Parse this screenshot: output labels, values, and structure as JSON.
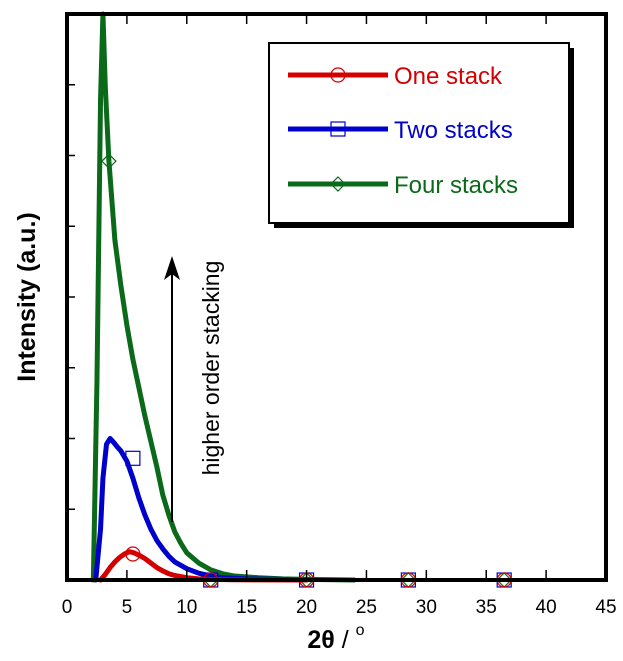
{
  "chart_data": {
    "type": "line",
    "title": "",
    "xlabel_main": "2θ",
    "xlabel_sep": " / ",
    "xlabel_unit": "o",
    "ylabel": "Intensity (a.u.)",
    "xlim": [
      0,
      45
    ],
    "ylim": [
      0,
      1
    ],
    "x_ticks": [
      0,
      5,
      10,
      15,
      20,
      25,
      30,
      35,
      40,
      45
    ],
    "y_ticks_count": 8,
    "y_tick_labels_shown": false,
    "grid": false,
    "legend_position": "top-right",
    "annotation": "higher order stacking",
    "series": [
      {
        "name": "One stack",
        "color": "#d40000",
        "marker": "circle",
        "x": [
          2.8,
          3.2,
          3.6,
          4.0,
          4.4,
          4.8,
          5.2,
          5.6,
          6.0,
          6.5,
          7.0,
          7.5,
          8.0,
          8.5,
          9.0,
          10,
          11,
          12,
          14,
          16,
          20
        ],
        "y": [
          0.0,
          0.01,
          0.022,
          0.032,
          0.04,
          0.046,
          0.05,
          0.048,
          0.044,
          0.038,
          0.03,
          0.022,
          0.016,
          0.011,
          0.008,
          0.004,
          0.002,
          0.001,
          0.0005,
          0.0002,
          0.0
        ],
        "marker_x": [
          5.5,
          12,
          20,
          28.5,
          36.5
        ],
        "marker_y": [
          0.046,
          0.0,
          0.0,
          0.0,
          0.0
        ]
      },
      {
        "name": "Two stacks",
        "color": "#0000cc",
        "marker": "square",
        "x": [
          2.4,
          2.8,
          3.0,
          3.3,
          3.6,
          3.9,
          4.2,
          4.5,
          5.0,
          5.5,
          6.0,
          6.5,
          7.0,
          7.5,
          8.0,
          8.5,
          9.0,
          10,
          11,
          12,
          13,
          15,
          18,
          20
        ],
        "y": [
          0.0,
          0.09,
          0.18,
          0.24,
          0.25,
          0.243,
          0.235,
          0.228,
          0.21,
          0.18,
          0.145,
          0.115,
          0.09,
          0.07,
          0.055,
          0.042,
          0.032,
          0.02,
          0.012,
          0.007,
          0.004,
          0.002,
          0.001,
          0.0
        ],
        "marker_x": [
          5.5,
          12,
          20,
          28.5,
          36.5
        ],
        "marker_y": [
          0.215,
          0.0,
          0.0,
          0.0,
          0.0
        ]
      },
      {
        "name": "Four stacks",
        "color": "#0a6a1a",
        "marker": "diamond",
        "x": [
          2.2,
          2.5,
          2.8,
          3.0,
          3.2,
          3.5,
          4.0,
          4.5,
          5.0,
          5.5,
          6.0,
          6.5,
          7.0,
          7.5,
          8.0,
          8.5,
          9.0,
          9.5,
          10,
          11,
          12,
          13,
          14,
          16,
          18,
          20,
          24
        ],
        "y": [
          0.0,
          0.35,
          0.85,
          1.0,
          0.87,
          0.74,
          0.6,
          0.52,
          0.45,
          0.39,
          0.34,
          0.29,
          0.245,
          0.2,
          0.15,
          0.115,
          0.085,
          0.065,
          0.048,
          0.03,
          0.018,
          0.011,
          0.007,
          0.004,
          0.002,
          0.001,
          0.0
        ],
        "marker_x": [
          3.5,
          12,
          20,
          28.5,
          36.5
        ],
        "marker_y": [
          0.74,
          0.0,
          0.0,
          0.0,
          0.0
        ]
      }
    ]
  }
}
